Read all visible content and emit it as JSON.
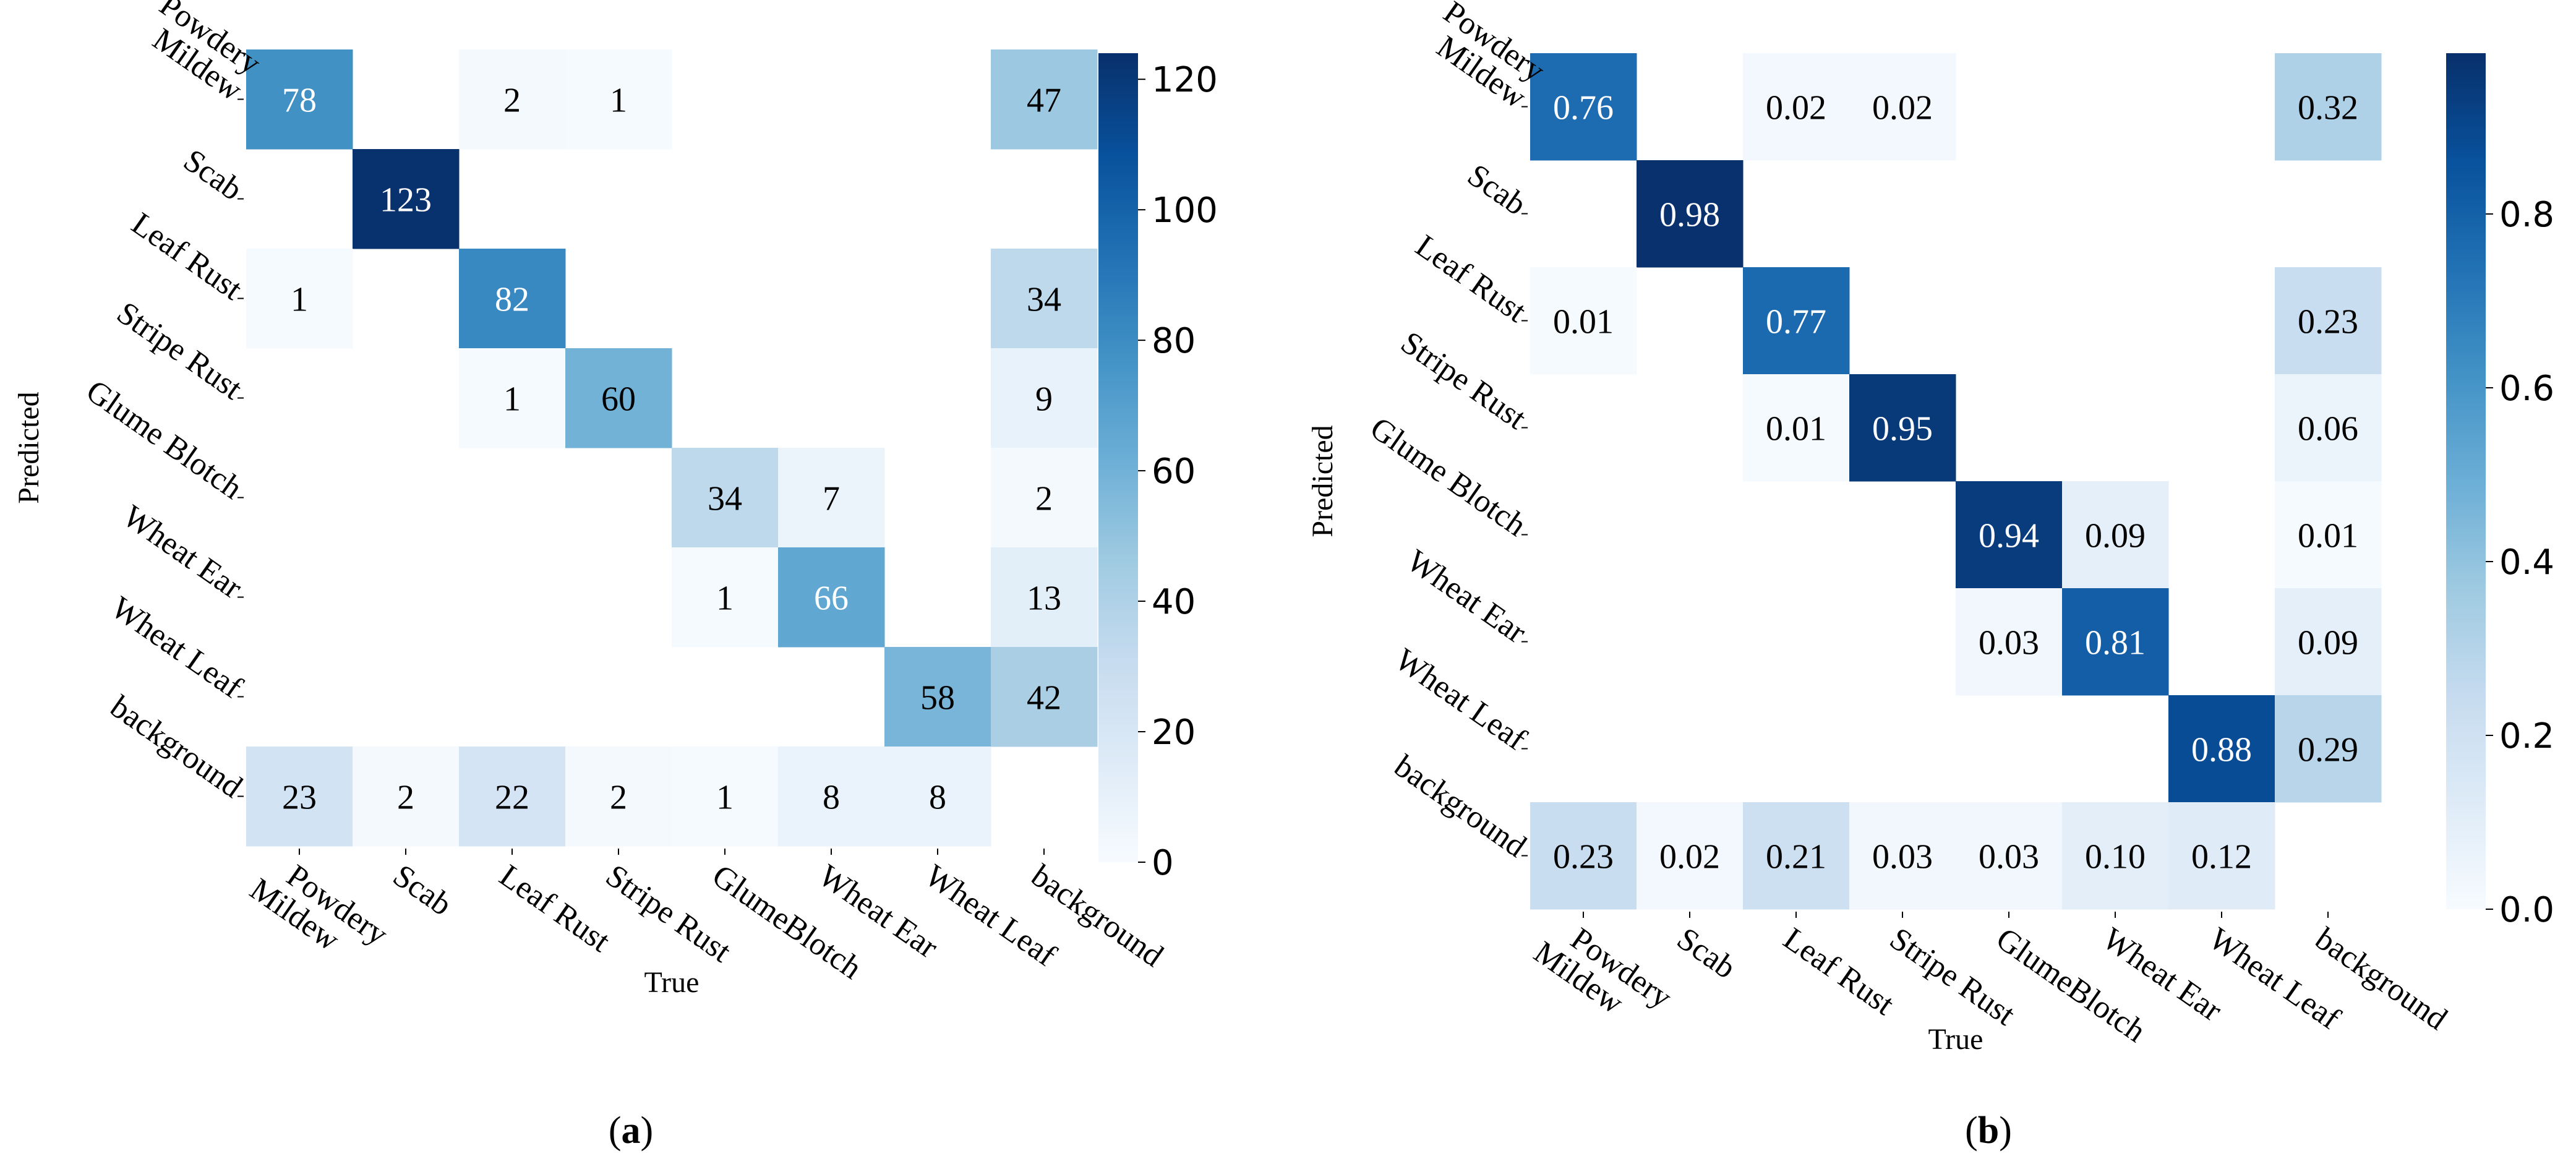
{
  "chart_data": [
    {
      "type": "heatmap",
      "panel": "a",
      "caption": {
        "open": "(",
        "letter": "a",
        "close": ")"
      },
      "xlabel": "True",
      "ylabel": "Predicted",
      "x_categories": [
        "Powdery\nMildew",
        "Scab",
        "Leaf Rust",
        "Stripe Rust",
        "GlumeBlotch",
        "Wheat Ear",
        "Wheat Leaf",
        "background"
      ],
      "y_categories": [
        "Powdery\nMildew",
        "Scab",
        "Leaf Rust",
        "Stripe Rust",
        "Glume Blotch",
        "Wheat Ear",
        "Wheat Leaf",
        "background"
      ],
      "values": [
        [
          78,
          null,
          2,
          1,
          null,
          null,
          null,
          47
        ],
        [
          null,
          123,
          null,
          null,
          null,
          null,
          null,
          null
        ],
        [
          1,
          null,
          82,
          null,
          null,
          null,
          null,
          34
        ],
        [
          null,
          null,
          1,
          60,
          null,
          null,
          null,
          9
        ],
        [
          null,
          null,
          null,
          null,
          34,
          7,
          null,
          2
        ],
        [
          null,
          null,
          null,
          null,
          1,
          66,
          null,
          13
        ],
        [
          null,
          null,
          null,
          null,
          null,
          null,
          58,
          42
        ],
        [
          23,
          2,
          22,
          2,
          1,
          8,
          8,
          null
        ]
      ],
      "vmin": 0,
      "vmax": 124,
      "colorbar_ticks": [
        "0",
        "20",
        "40",
        "60",
        "80",
        "100",
        "120"
      ],
      "colorbar_tick_values": [
        0,
        20,
        40,
        60,
        80,
        100,
        120
      ],
      "decimals": 0
    },
    {
      "type": "heatmap",
      "panel": "b",
      "caption": {
        "open": "(",
        "letter": "b",
        "close": ")"
      },
      "xlabel": "True",
      "ylabel": "Predicted",
      "x_categories": [
        "Powdery\nMildew",
        "Scab",
        "Leaf Rust",
        "Stripe Rust",
        "GlumeBlotch",
        "Wheat Ear",
        "Wheat Leaf",
        "background"
      ],
      "y_categories": [
        "Powdery\nMildew",
        "Scab",
        "Leaf Rust",
        "Stripe Rust",
        "Glume Blotch",
        "Wheat Ear",
        "Wheat Leaf",
        "background"
      ],
      "values": [
        [
          0.76,
          null,
          0.02,
          0.02,
          null,
          null,
          null,
          0.32
        ],
        [
          null,
          0.98,
          null,
          null,
          null,
          null,
          null,
          null
        ],
        [
          0.01,
          null,
          0.77,
          null,
          null,
          null,
          null,
          0.23
        ],
        [
          null,
          null,
          0.01,
          0.95,
          null,
          null,
          null,
          0.06
        ],
        [
          null,
          null,
          null,
          null,
          0.94,
          0.09,
          null,
          0.01
        ],
        [
          null,
          null,
          null,
          null,
          0.03,
          0.81,
          null,
          0.09
        ],
        [
          null,
          null,
          null,
          null,
          null,
          null,
          0.88,
          0.29
        ],
        [
          0.23,
          0.02,
          0.21,
          0.03,
          0.03,
          0.1,
          0.12,
          null
        ]
      ],
      "vmin": 0,
      "vmax": 0.985,
      "colorbar_ticks": [
        "0.0",
        "0.2",
        "0.4",
        "0.6",
        "0.8"
      ],
      "colorbar_tick_values": [
        0,
        0.2,
        0.4,
        0.6,
        0.8
      ],
      "decimals": 2
    }
  ]
}
